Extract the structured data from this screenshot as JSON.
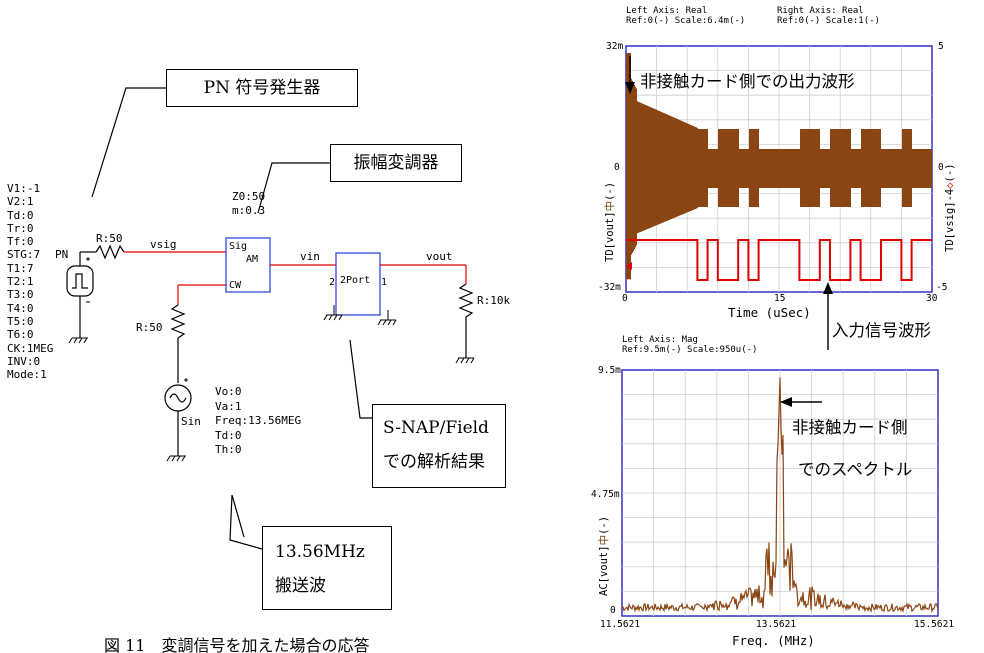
{
  "schematic": {
    "pn_params": [
      "V1:-1",
      "V2:1",
      "Td:0",
      "Tr:0",
      "Tf:0",
      "STG:7",
      "T1:7",
      "T2:1",
      "T3:0",
      "T4:0",
      "T5:0",
      "T6:0",
      "CK:1MEG",
      "INV:0",
      "Mode:1"
    ],
    "pn_label": "PN",
    "r1_label": "R:50",
    "vsig_net": "vsig",
    "am_params": [
      "Z0:50",
      "m:0.3"
    ],
    "am_sig": "Sig",
    "am_am": "AM",
    "am_cw": "CW",
    "r2_label": "R:50",
    "sin_label": "Sin",
    "sin_params": [
      "Vo:0",
      "Va:1",
      "Freq:13.56MEG",
      "Td:0",
      "Th:0"
    ],
    "vin_net": "vin",
    "twoport_label": "2Port",
    "port2_label": "2",
    "port1_label": "1",
    "vout_net": "vout",
    "load_label": "R:10k"
  },
  "callouts": {
    "pn_gen": "PN 符号発生器",
    "modulator": "振幅変調器",
    "snap_line1": "S-NAP/Field",
    "snap_line2": "での解析結果",
    "carrier_line1": "13.56MHz",
    "carrier_line2": "搬送波"
  },
  "caption": "図 11　変調信号を加えた場合の応答",
  "plot_top": {
    "header_left_line1": "Left Axis: Real",
    "header_left_line2": "Ref:0(-) Scale:6.4m(-)",
    "header_right_line1": "Right Axis: Real",
    "header_right_line2": "Ref:0(-) Scale:1(-)",
    "ytick_left_top": "32m",
    "ytick_left_mid": "0",
    "ytick_left_bottom": "-32m",
    "ytick_right_top": "5",
    "ytick_right_mid": "0",
    "ytick_right_bottom": "-5",
    "xtick_0": "0",
    "xtick_1": "15",
    "xtick_2": "30",
    "xlabel": "Time (uSec)",
    "left_ylabel": "TD[vout]",
    "left_yunit": "(-)",
    "right_ylabel": "TD[vsig]-4",
    "right_yunit": "(-)",
    "annot_out": "非接触カード側での出力波形",
    "annot_in": "入力信号波形",
    "colors": {
      "vout": "#8B4513",
      "vsig": "#e00000",
      "frame": "#3333cc",
      "grid": "#c8c8c8"
    }
  },
  "plot_bottom": {
    "header_line1": "Left Axis: Mag",
    "header_line2": "Ref:9.5m(-) Scale:950u(-)",
    "ytick_top": "9.5m",
    "ytick_mid": "4.75m",
    "ytick_bottom": "0",
    "xtick_0": "11.5621",
    "xtick_1": "13.5621",
    "xtick_2": "15.5621",
    "xlabel": "Freq. (MHz)",
    "ylabel": "AC[vout]",
    "yunit": "(-)",
    "annot_line1": "非接触カード側",
    "annot_line2": "でのスペクトル"
  }
}
